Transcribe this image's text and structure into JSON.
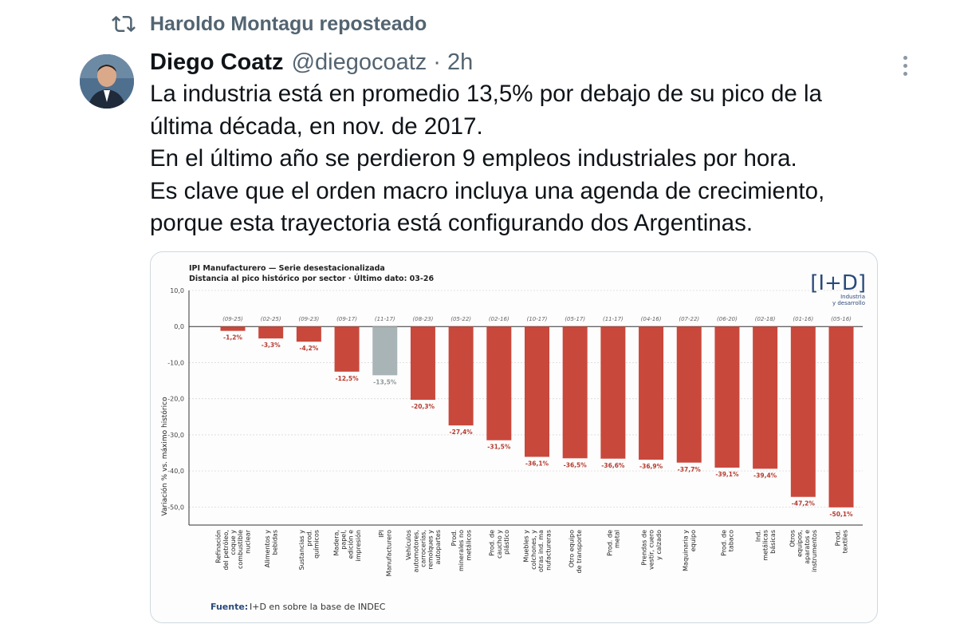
{
  "repost": {
    "text": "Haroldo Montagu reposteado",
    "icon": "repost-icon"
  },
  "author": {
    "name": "Diego Coatz",
    "handle": "@diegocoatz",
    "separator": "·",
    "time": "2h"
  },
  "tweet": {
    "lines": [
      "La industria está en promedio 13,5% por debajo de su pico de la",
      "última década, en nov. de 2017.",
      "En el último año se perdieron 9 empleos industriales por hora.",
      "Es clave que el orden macro incluya una agenda de crecimiento,",
      "porque esta trayectoria está configurando dos Argentinas."
    ]
  },
  "chart": {
    "title": "IPI Manufacturero — Serie desestacionalizada",
    "subtitle": "Distancia al pico histórico por sector  ·  Último dato: 03-26",
    "logo_main": "[I+D]",
    "logo_sub1": "Industria",
    "logo_sub2": "y desarrollo",
    "source_label": "Fuente:",
    "source_text": "I+D en sobre la base de INDEC"
  },
  "chart_data": {
    "type": "bar",
    "title": "IPI Manufacturero — Serie desestacionalizada",
    "subtitle": "Distancia al pico histórico por sector · Último dato: 03-26",
    "ylabel": "Variación % vs. máximo histórico",
    "ylim": [
      -55,
      10
    ],
    "yticks": [
      "10,0",
      "0,0",
      "-10,0",
      "-20,0",
      "-30,0",
      "-40,0",
      "-50,0"
    ],
    "grid": true,
    "categories": [
      [
        "Refinación",
        "del petróleo,",
        "coque y",
        "combustible",
        "nuclear"
      ],
      [
        "Alimentos y",
        "bebidas"
      ],
      [
        "Sustancias y",
        "prod.",
        "químicos"
      ],
      [
        "Madera,",
        "papel,",
        "edición e",
        "impresión"
      ],
      [
        "IPI",
        "Manufacturero"
      ],
      [
        "Vehículos",
        "automotores,",
        "carrocerías,",
        "remolques y",
        "autopartes"
      ],
      [
        "Prod.",
        "minerales no",
        "metálicos"
      ],
      [
        "Prod. de",
        "caucho y",
        "plástico"
      ],
      [
        "Muebles y",
        "colchones, y",
        "otras ind. ma",
        "nufactureras"
      ],
      [
        "Otro equipo",
        "de transporte"
      ],
      [
        "Prod. de",
        "metal"
      ],
      [
        "Prendas de",
        "vestir, cuero",
        "y calzado"
      ],
      [
        "Maquinaria y",
        "equipo"
      ],
      [
        "Prod. de",
        "tabaco"
      ],
      [
        "Ind.",
        "metálicas",
        "básicas"
      ],
      [
        "Otros",
        "equipos,",
        "aparatos e",
        "instrumentos"
      ],
      [
        "Prod.",
        "textiles"
      ]
    ],
    "values": [
      -1.2,
      -3.3,
      -4.2,
      -12.5,
      -13.5,
      -20.3,
      -27.4,
      -31.5,
      -36.1,
      -36.5,
      -36.6,
      -36.9,
      -37.7,
      -39.1,
      -39.4,
      -47.2,
      -50.1
    ],
    "value_labels": [
      "-1,2%",
      "-3,3%",
      "-4,2%",
      "-12,5%",
      "-13,5%",
      "-20,3%",
      "-27,4%",
      "-31,5%",
      "-36,1%",
      "-36,5%",
      "-36,6%",
      "-36,9%",
      "-37,7%",
      "-39,1%",
      "-39,4%",
      "-47,2%",
      "-50,1%"
    ],
    "peak_dates": [
      "(09-25)",
      "(02-25)",
      "(09-23)",
      "(09-17)",
      "(11-17)",
      "(08-23)",
      "(05-22)",
      "(02-16)",
      "(10-17)",
      "(05-17)",
      "(11-17)",
      "(04-16)",
      "(07-22)",
      "(06-20)",
      "(02-18)",
      "(01-16)",
      "(05-16)"
    ],
    "highlight_index": 4,
    "colors": {
      "bar": "#c9483c",
      "highlight": "#a8b4b5",
      "label": "#b53a2f",
      "highlight_label": "#8d9799"
    }
  }
}
